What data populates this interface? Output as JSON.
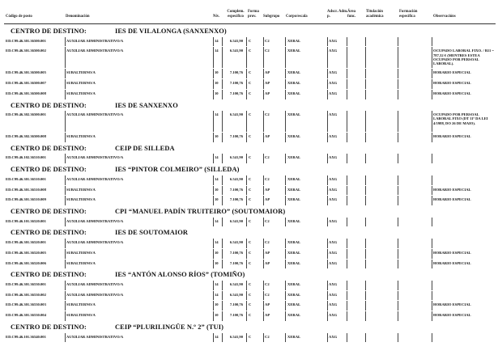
{
  "header": {
    "codigo": "Código de posto",
    "denominacion": "Denominación",
    "niv": "Nív.",
    "complem": "Complem. específico",
    "forma": "Forma prov.",
    "subgrupo": "Subgrupo",
    "corpo": "Corpo/escala",
    "adscr": "Adscr. Adm. p.",
    "area": "Área func.",
    "titulacion": "Titulación académica",
    "formacion": "Formación específica",
    "observacions": "Observacións"
  },
  "section_label": "CENTRO DE DESTINO:",
  "sections": [
    {
      "name": "IES DE VILALONGA (SANXENXO)",
      "rows": [
        {
          "code": "ED.C99.46.301.36500.001",
          "den": "AUXILIAR ADMINISTRATIVO/A",
          "niv": "14",
          "comp": "6.541,90",
          "forma": "C",
          "sub": "C2",
          "corpo": "XERAL",
          "adscr": "AXG",
          "obs": ""
        },
        {
          "code": "ED.C99.46.301.36500.002",
          "den": "AUXILIAR ADMINISTRATIVO/A",
          "niv": "14",
          "comp": "6.541,90",
          "forma": "C",
          "sub": "C2",
          "corpo": "XERAL",
          "adscr": "AXG",
          "obs": "OCUPADO LABORAL FIXO. / B11 = 787,32 € (MENTRES ESTEA OCUPADO POR PERSOAL LABORAL)."
        },
        {
          "code": "ED.C99.46.301.36500.005",
          "den": "SUBALTERNO/A",
          "niv": "10",
          "comp": "7.100,76",
          "forma": "C",
          "sub": "AP",
          "corpo": "XERAL",
          "adscr": "AXG",
          "obs": "HORARIO ESPECIAL"
        },
        {
          "code": "ED.C99.46.301.36500.007",
          "den": "SUBALTERNO/A",
          "niv": "10",
          "comp": "7.100,76",
          "forma": "C",
          "sub": "AP",
          "corpo": "XERAL",
          "adscr": "AXG",
          "obs": "HORARIO ESPECIAL"
        },
        {
          "code": "ED.C99.46.301.36500.008",
          "den": "SUBALTERNO/A",
          "niv": "10",
          "comp": "7.100,76",
          "forma": "C",
          "sub": "AP",
          "corpo": "XERAL",
          "adscr": "AXG",
          "obs": "HORARIO ESPECIAL"
        }
      ]
    },
    {
      "name": "IES DE SANXENXO",
      "rows": [
        {
          "code": "ED.C99.46.302.36500.001",
          "den": "AUXILIAR ADMINISTRATIVO/A",
          "niv": "14",
          "comp": "6.541,90",
          "forma": "C",
          "sub": "C2",
          "corpo": "XERAL",
          "adscr": "AXG",
          "obs": "OCUPADO POR PERSOAL LABORAL FIXO (DT 11ª DA LEI 4/1988, DO 26 DE MAIO)."
        },
        {
          "code": "ED.C99.46.302.36500.008",
          "den": "SUBALTERNO/A",
          "niv": "10",
          "comp": "7.100,76",
          "forma": "C",
          "sub": "AP",
          "corpo": "XERAL",
          "adscr": "AXG",
          "obs": "HORARIO ESPECIAL"
        }
      ]
    },
    {
      "name": "CEIP DE SILLEDA",
      "rows": [
        {
          "code": "ED.C99.46.102.36510.001",
          "den": "AUXILIAR ADMINISTRATIVO/A",
          "niv": "14",
          "comp": "6.541,90",
          "forma": "C",
          "sub": "C2",
          "corpo": "XERAL",
          "adscr": "AXG",
          "obs": ""
        }
      ]
    },
    {
      "name": "IES “PINTOR COLMEIRO” (SILLEDA)",
      "rows": [
        {
          "code": "ED.C99.46.301.36510.001",
          "den": "AUXILIAR ADMINISTRATIVO/A",
          "niv": "14",
          "comp": "6.541,90",
          "forma": "C",
          "sub": "C2",
          "corpo": "XERAL",
          "adscr": "AXG",
          "obs": ""
        },
        {
          "code": "ED.C99.46.301.36510.008",
          "den": "SUBALTERNO/A",
          "niv": "10",
          "comp": "7.100,76",
          "forma": "C",
          "sub": "AP",
          "corpo": "XERAL",
          "adscr": "AXG",
          "obs": "HORARIO ESPECIAL"
        },
        {
          "code": "ED.C99.46.301.36510.009",
          "den": "SUBALTERNO/A",
          "niv": "10",
          "comp": "7.100,76",
          "forma": "C",
          "sub": "AP",
          "corpo": "XERAL",
          "adscr": "AXG",
          "obs": "HORARIO ESPECIAL"
        }
      ]
    },
    {
      "name": "CPI “MANUEL PADÍN TRUITEIRO” (SOUTOMAIOR)",
      "rows": [
        {
          "code": "ED.C99.46.101.36520.001",
          "den": "AUXILIAR ADMINISTRATIVO/A",
          "niv": "14",
          "comp": "6.541,90",
          "forma": "C",
          "sub": "C2",
          "corpo": "XERAL",
          "adscr": "AXG",
          "obs": ""
        }
      ]
    },
    {
      "name": "IES DE SOUTOMAIOR",
      "rows": [
        {
          "code": "ED.C99.46.301.36520.001",
          "den": "AUXILIAR ADMINISTRATIVO/A",
          "niv": "14",
          "comp": "6.541,90",
          "forma": "C",
          "sub": "C2",
          "corpo": "XERAL",
          "adscr": "AXG",
          "obs": ""
        },
        {
          "code": "ED.C99.46.301.36520.005",
          "den": "SUBALTERNO/A",
          "niv": "10",
          "comp": "7.100,76",
          "forma": "C",
          "sub": "AP",
          "corpo": "XERAL",
          "adscr": "AXG",
          "obs": "HORARIO ESPECIAL"
        },
        {
          "code": "ED.C99.46.301.36520.006",
          "den": "SUBALTERNO/A",
          "niv": "10",
          "comp": "7.100,76",
          "forma": "C",
          "sub": "AP",
          "corpo": "XERAL",
          "adscr": "AXG",
          "obs": "HORARIO ESPECIAL"
        }
      ]
    },
    {
      "name": "IES “ANTÓN ALONSO RÍOS” (TOMIÑO)",
      "rows": [
        {
          "code": "ED.C99.46.301.36530.001",
          "den": "AUXILIAR ADMINISTRATIVO/A",
          "niv": "14",
          "comp": "6.541,90",
          "forma": "C",
          "sub": "C2",
          "corpo": "XERAL",
          "adscr": "AXG",
          "obs": ""
        },
        {
          "code": "ED.C99.46.301.36530.002",
          "den": "AUXILIAR ADMINISTRATIVO/A",
          "niv": "14",
          "comp": "6.541,90",
          "forma": "C",
          "sub": "C2",
          "corpo": "XERAL",
          "adscr": "AXG",
          "obs": ""
        },
        {
          "code": "ED.C99.46.301.36530.003",
          "den": "SUBALTERNO/A",
          "niv": "10",
          "comp": "7.100,76",
          "forma": "C",
          "sub": "AP",
          "corpo": "XERAL",
          "adscr": "AXG",
          "obs": "HORARIO ESPECIAL"
        },
        {
          "code": "ED.C99.46.301.36530.004",
          "den": "SUBALTERNO/A",
          "niv": "10",
          "comp": "7.100,76",
          "forma": "C",
          "sub": "AP",
          "corpo": "XERAL",
          "adscr": "AXG",
          "obs": "HORARIO ESPECIAL"
        }
      ]
    },
    {
      "name": "CEIP “PLURILINGÜE N.º 2” (TUI)",
      "rows": [
        {
          "code": "ED.C99.46.101.36540.001",
          "den": "AUXILIAR ADMINISTRATIVO/A",
          "niv": "14",
          "comp": "6.541,90",
          "forma": "C",
          "sub": "C2",
          "corpo": "XERAL",
          "adscr": "AXG",
          "obs": ""
        }
      ]
    }
  ]
}
